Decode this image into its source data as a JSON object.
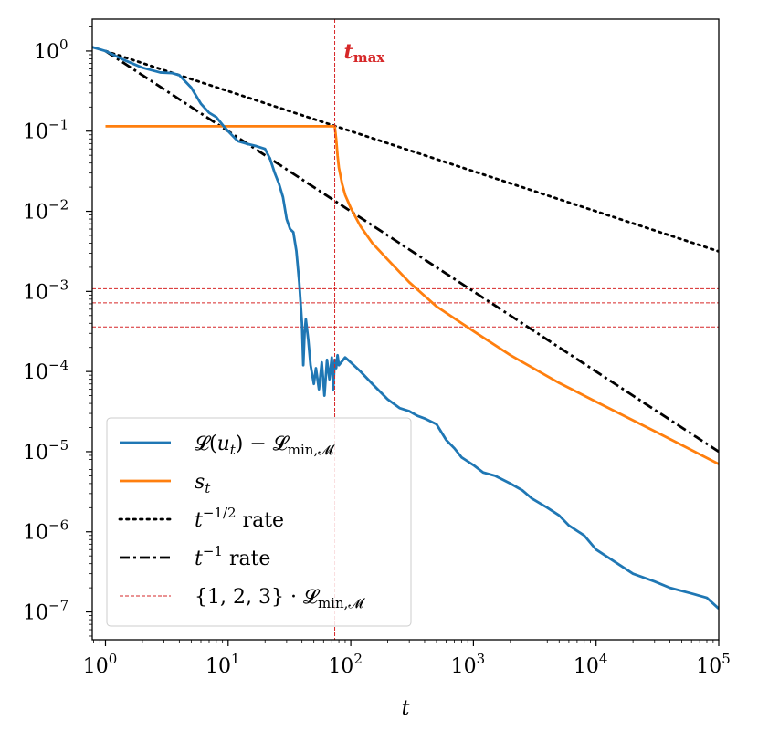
{
  "chart_data": {
    "type": "line",
    "title": "",
    "xlabel": "t",
    "ylabel": "",
    "x_scale": "log",
    "y_scale": "log",
    "xlim": [
      0.78,
      100000
    ],
    "ylim": [
      4.5e-08,
      2.5
    ],
    "grid": false,
    "legend_position": "lower-left",
    "x_ticks": [
      {
        "base": "10",
        "exp": "0",
        "value": 1
      },
      {
        "base": "10",
        "exp": "1",
        "value": 10
      },
      {
        "base": "10",
        "exp": "2",
        "value": 100
      },
      {
        "base": "10",
        "exp": "3",
        "value": 1000
      },
      {
        "base": "10",
        "exp": "4",
        "value": 10000
      },
      {
        "base": "10",
        "exp": "5",
        "value": 100000
      }
    ],
    "y_ticks": [
      {
        "base": "10",
        "exp": "0",
        "value": 1
      },
      {
        "base": "10",
        "exp": "−1",
        "value": 0.1
      },
      {
        "base": "10",
        "exp": "−2",
        "value": 0.01
      },
      {
        "base": "10",
        "exp": "−3",
        "value": 0.001
      },
      {
        "base": "10",
        "exp": "−4",
        "value": 0.0001
      },
      {
        "base": "10",
        "exp": "−5",
        "value": 1e-05
      },
      {
        "base": "10",
        "exp": "−6",
        "value": 1e-06
      },
      {
        "base": "10",
        "exp": "−7",
        "value": 1e-07
      }
    ],
    "annotation": {
      "text": "t",
      "subscript": "max",
      "x": 74,
      "color": "#d62728"
    },
    "hlines": [
      0.00036,
      0.00072,
      0.00108
    ],
    "series": [
      {
        "name": "𝓛(u_t) − 𝓛_min,𝓜",
        "color": "#1f77b4",
        "style": "solid",
        "x": [
          0.78,
          1,
          1.4,
          2,
          2.8,
          3.5,
          4,
          5,
          6,
          7,
          8,
          9,
          10,
          12,
          14,
          17,
          20,
          22,
          24,
          26,
          28,
          30,
          32,
          34,
          36,
          38,
          40,
          41,
          42,
          43,
          45,
          47,
          50,
          52,
          55,
          58,
          61,
          64,
          67,
          70,
          72,
          74,
          76,
          78,
          80,
          90,
          100,
          120,
          150,
          200,
          250,
          300,
          350,
          400,
          500,
          600,
          700,
          800,
          1000,
          1200,
          1500,
          2000,
          2500,
          3000,
          4000,
          5000,
          6000,
          8000,
          10000,
          15000,
          20000,
          30000,
          40000,
          60000,
          80000,
          100000
        ],
        "y": [
          1.12,
          1.0,
          0.78,
          0.62,
          0.54,
          0.53,
          0.5,
          0.35,
          0.22,
          0.17,
          0.15,
          0.12,
          0.1,
          0.075,
          0.07,
          0.065,
          0.06,
          0.045,
          0.03,
          0.022,
          0.015,
          0.008,
          0.006,
          0.0055,
          0.0032,
          0.0013,
          0.0004,
          0.00012,
          0.0003,
          0.00045,
          0.00025,
          0.00012,
          7e-05,
          0.00011,
          6e-05,
          0.00013,
          5e-05,
          0.00014,
          8e-05,
          0.00015,
          6e-05,
          0.00014,
          0.00011,
          0.00016,
          0.00012,
          0.00015,
          0.00013,
          0.0001,
          7e-05,
          4.5e-05,
          3.5e-05,
          3.2e-05,
          2.8e-05,
          2.6e-05,
          2.2e-05,
          1.4e-05,
          1.1e-05,
          8.5e-06,
          6.8e-06,
          5.5e-06,
          5e-06,
          4e-06,
          3.3e-06,
          2.6e-06,
          2e-06,
          1.6e-06,
          1.2e-06,
          9e-07,
          6e-07,
          4e-07,
          3e-07,
          2.4e-07,
          2e-07,
          1.7e-07,
          1.5e-07,
          1.1e-07
        ]
      },
      {
        "name": "s_t",
        "color": "#ff7f0e",
        "style": "solid",
        "x": [
          1,
          74,
          76,
          78,
          80,
          85,
          90,
          100,
          120,
          150,
          200,
          300,
          500,
          1000,
          2000,
          5000,
          10000,
          30000,
          100000
        ],
        "y": [
          0.115,
          0.115,
          0.08,
          0.05,
          0.035,
          0.022,
          0.016,
          0.011,
          0.0065,
          0.004,
          0.0025,
          0.0013,
          0.00065,
          0.00032,
          0.00016,
          7.2e-05,
          4.2e-05,
          1.8e-05,
          7e-06
        ]
      },
      {
        "name": "t^−1/2 rate",
        "color": "#000000",
        "style": "dotted",
        "x": [
          1,
          100000
        ],
        "y": [
          1,
          0.00316
        ]
      },
      {
        "name": "t^−1 rate",
        "color": "#000000",
        "style": "dashdot",
        "x": [
          1,
          100000
        ],
        "y": [
          1,
          1e-05
        ]
      },
      {
        "name": "{1, 2, 3} · 𝓛_min,𝓜",
        "color": "#d62728",
        "style": "dashed-thin",
        "x": [],
        "y": []
      }
    ],
    "legend": [
      {
        "pre": "𝓛(",
        "var": "u",
        "sub": "t",
        "post": ") − 𝓛",
        "sub2": "min,𝓜",
        "color": "#1f77b4",
        "style": "solid"
      },
      {
        "pre": "",
        "var": "s",
        "sub": "t",
        "post": "",
        "sub2": "",
        "color": "#ff7f0e",
        "style": "solid"
      },
      {
        "pre": "",
        "var": "t",
        "sup": "−1/2",
        "post": " rate",
        "color": "#000000",
        "style": "dotted"
      },
      {
        "pre": "",
        "var": "t",
        "sup": "−1",
        "post": " rate",
        "color": "#000000",
        "style": "dashdot"
      },
      {
        "pre": "{1, 2, 3} · 𝓛",
        "var": "",
        "sub2": "min,𝓜",
        "post": "",
        "color": "#d62728",
        "style": "dashed-thin"
      }
    ]
  }
}
